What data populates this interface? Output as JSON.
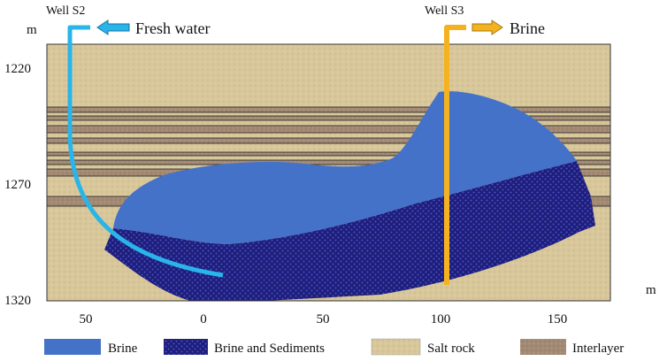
{
  "wells": {
    "s2": {
      "label": "Well S2",
      "flow_label": "Fresh water",
      "color": "#29b5ea"
    },
    "s3": {
      "label": "Well S3",
      "flow_label": "Brine",
      "color": "#f5b220"
    }
  },
  "axes": {
    "y_unit": "m",
    "x_unit": "m",
    "y_ticks": [
      "1220",
      "1270",
      "1320"
    ],
    "x_ticks": [
      "50",
      "0",
      "50",
      "100",
      "150"
    ]
  },
  "legend": [
    {
      "label": "Brine",
      "key": "brine"
    },
    {
      "label": "Brine and Sediments",
      "key": "sediments"
    },
    {
      "label": "Salt rock",
      "key": "salt"
    },
    {
      "label": "Interlayer",
      "key": "interlayer"
    }
  ],
  "colors": {
    "brine": "#4472c8",
    "sediments": "#1e1e7a",
    "salt_rock": "#d8c79a",
    "interlayer": "#a28a74",
    "arrow_s2": "#29b5ea",
    "arrow_s3": "#f5b220"
  }
}
